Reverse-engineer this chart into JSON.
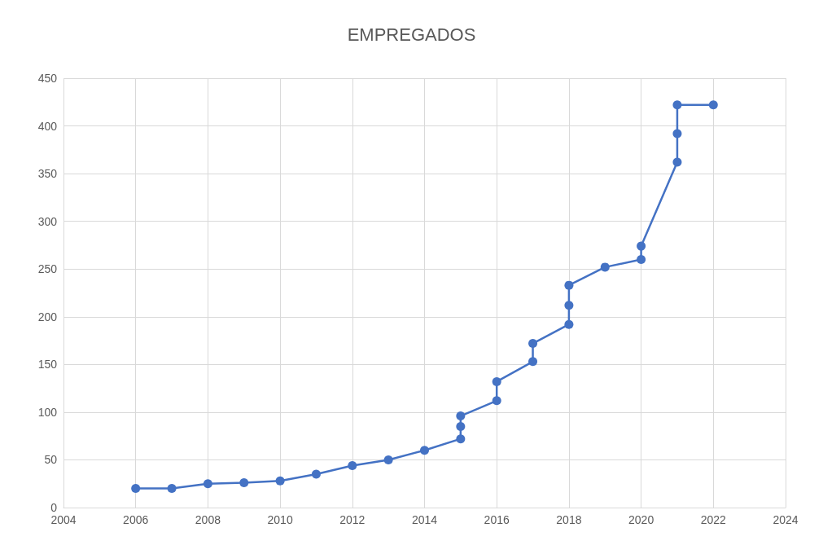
{
  "chart_data": {
    "type": "line",
    "title": "EMPREGADOS",
    "x": [
      2006,
      2007,
      2008,
      2009,
      2010,
      2011,
      2012,
      2013,
      2014,
      2015,
      2015,
      2015,
      2016,
      2016,
      2017,
      2017,
      2018,
      2018,
      2018,
      2019,
      2020,
      2020,
      2021,
      2021,
      2021,
      2022
    ],
    "series": [
      {
        "color": "#4472c4",
        "values": [
          20,
          20,
          25,
          26,
          28,
          35,
          44,
          50,
          60,
          72,
          85,
          96,
          112,
          132,
          153,
          172,
          192,
          212,
          233,
          252,
          260,
          274,
          362,
          392,
          422,
          422
        ]
      }
    ],
    "xlim": [
      2004,
      2024
    ],
    "xticks": [
      2004,
      2006,
      2008,
      2010,
      2012,
      2014,
      2016,
      2018,
      2020,
      2022,
      2024
    ],
    "ylim": [
      0,
      450
    ],
    "yticks": [
      0,
      50,
      100,
      150,
      200,
      250,
      300,
      350,
      400,
      450
    ],
    "grid": true,
    "marker": "circle",
    "line_style": "solid"
  }
}
